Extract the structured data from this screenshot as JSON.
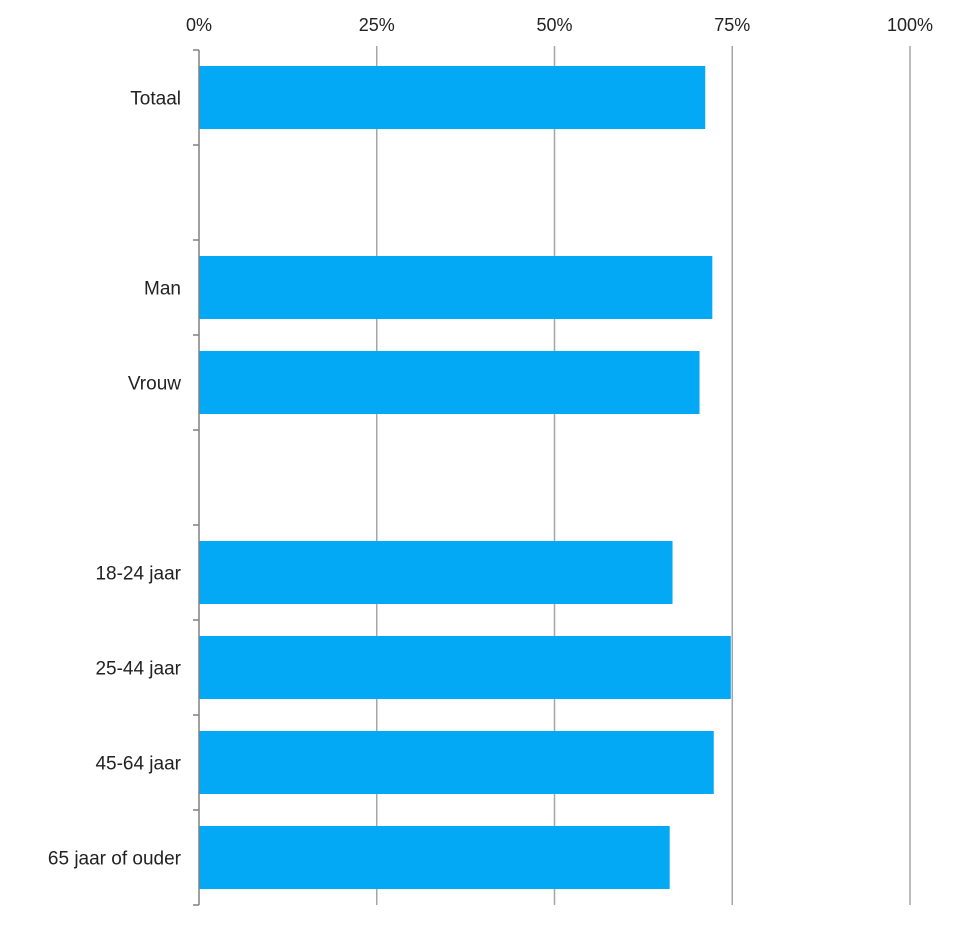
{
  "chart_data": {
    "type": "bar",
    "orientation": "horizontal",
    "categories": [
      "Totaal",
      "",
      "Man",
      "Vrouw",
      "",
      "18-24 jaar",
      "25-44 jaar",
      "45-64 jaar",
      "65 jaar of ouder"
    ],
    "values": [
      71.2,
      null,
      72.2,
      70.4,
      null,
      66.6,
      74.8,
      72.4,
      66.2
    ],
    "xlim": [
      0,
      100
    ],
    "x_ticks": [
      0,
      25,
      50,
      75,
      100
    ],
    "x_tick_labels": [
      "0%",
      "25%",
      "50%",
      "75%",
      "100%"
    ],
    "x_axis_position": "top",
    "grid": true,
    "bar_color": "#03a9f4",
    "title": "",
    "xlabel": "",
    "ylabel": ""
  }
}
